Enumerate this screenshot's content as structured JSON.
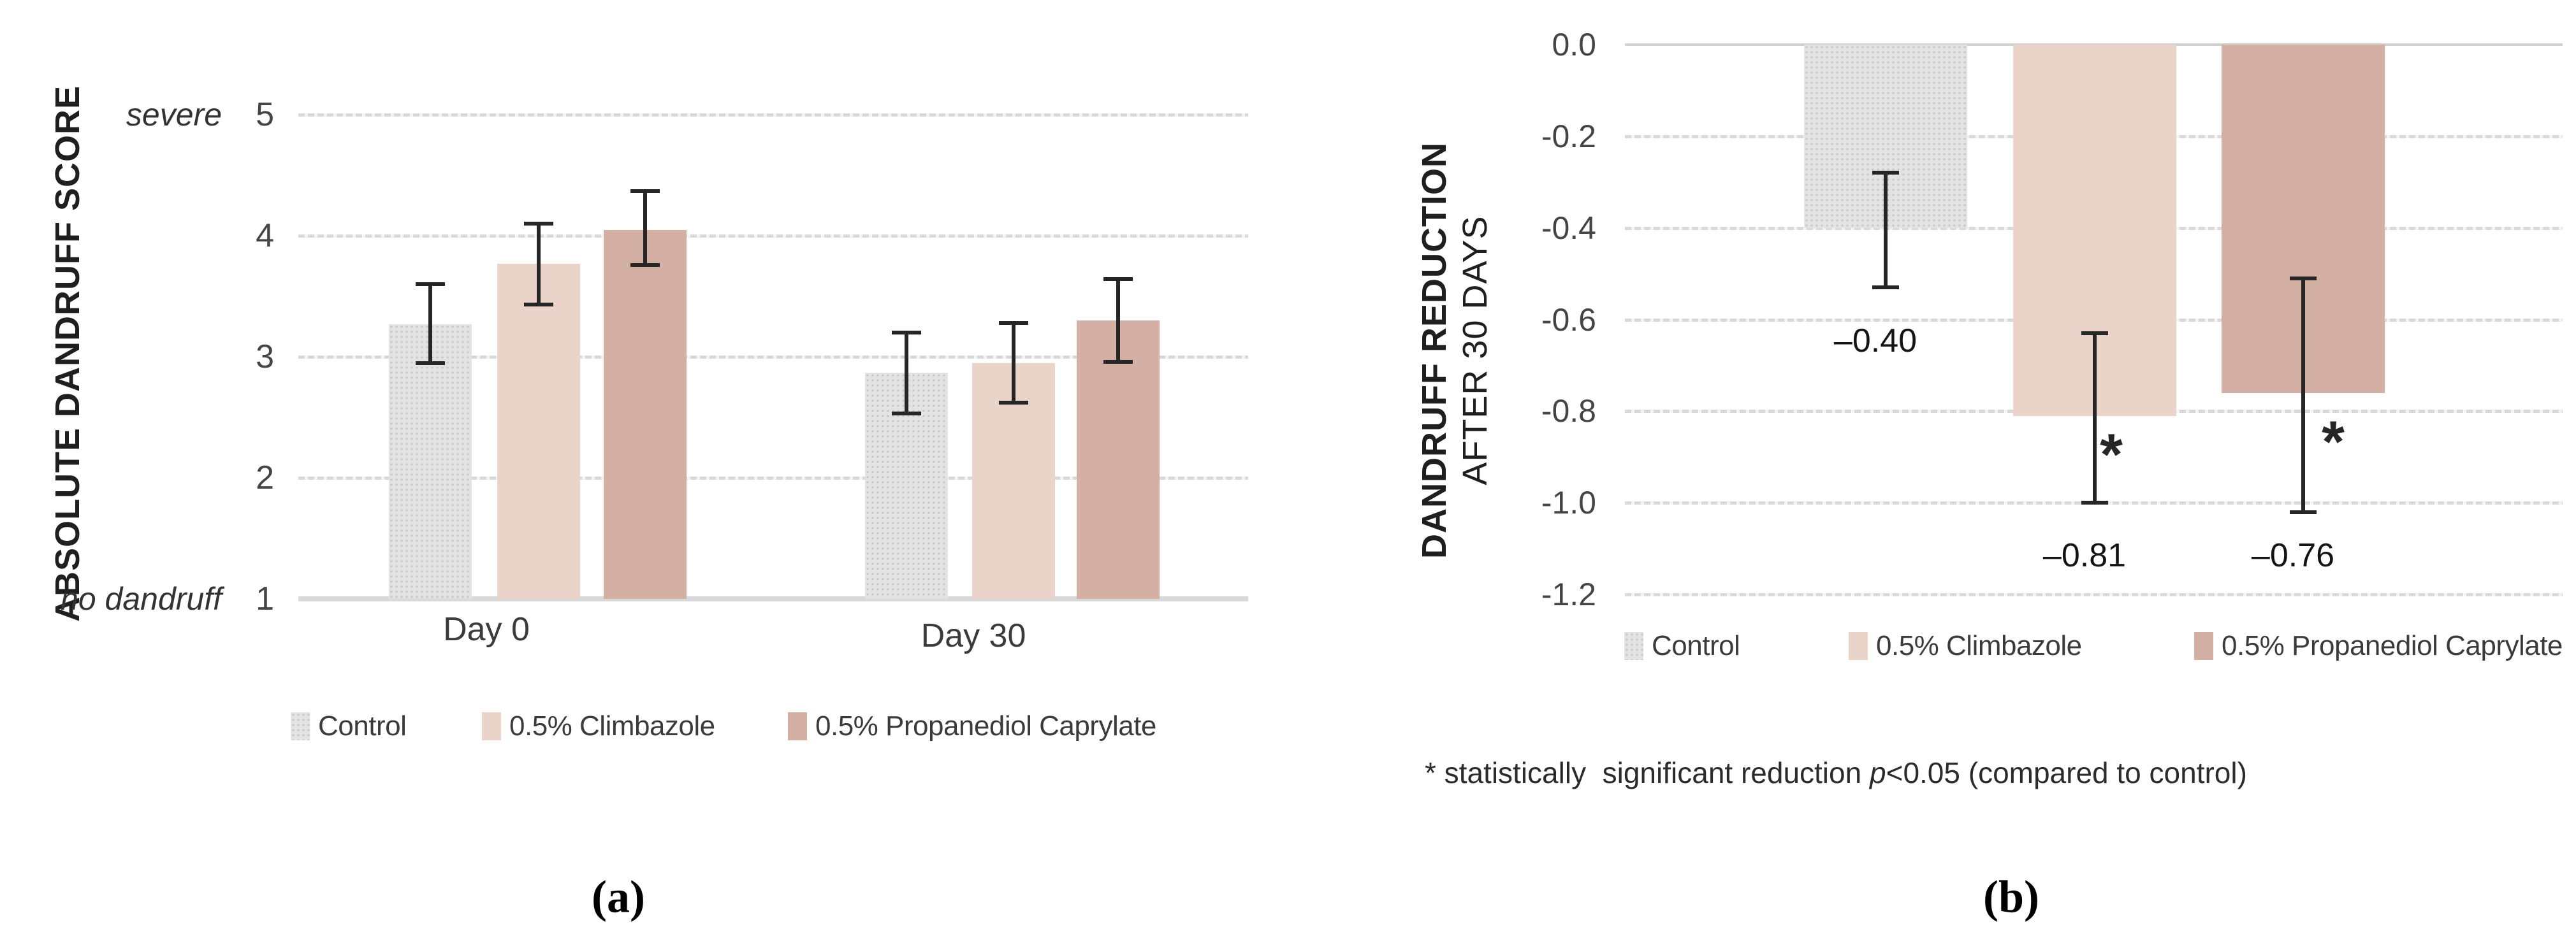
{
  "figure": {
    "panel_labels": [
      "(a)",
      "(b)"
    ],
    "background": "#ffffff",
    "colors": {
      "control": "#dcdcdc",
      "climbazole": "#ead3c9",
      "propanediol": "#d3b0a3",
      "gridline": "#d9d9d9",
      "error_bar": "#262626",
      "tick_text": "#454545",
      "label_text": "#141414"
    }
  },
  "chart_data": [
    {
      "id": "a",
      "type": "bar",
      "ylabel": "ABSOLUTE DANDRUFF SCORE",
      "ylim": [
        1,
        5
      ],
      "yticks": [
        "5",
        "4",
        "3",
        "2",
        "1"
      ],
      "ytick_values": [
        5,
        4,
        3,
        2,
        1
      ],
      "axis_annotations": {
        "top": "severe",
        "bottom": "no dandruff"
      },
      "categories": [
        "Day 0",
        "Day 30"
      ],
      "grid": true,
      "legend_position": "bottom",
      "series": [
        {
          "name": "Control",
          "color_key": "control",
          "pattern": "dots",
          "values": [
            3.27,
            2.87
          ],
          "err_lo": [
            2.95,
            2.53
          ],
          "err_hi": [
            3.6,
            3.2
          ]
        },
        {
          "name": "0.5% Climbazole",
          "color_key": "climbazole",
          "pattern": "solid",
          "values": [
            3.77,
            2.95
          ],
          "err_lo": [
            3.43,
            2.62
          ],
          "err_hi": [
            4.1,
            3.28
          ]
        },
        {
          "name": "0.5% Propanediol Caprylate",
          "color_key": "propanediol",
          "pattern": "solid",
          "values": [
            4.05,
            3.3
          ],
          "err_lo": [
            3.76,
            2.96
          ],
          "err_hi": [
            4.37,
            3.64
          ]
        }
      ]
    },
    {
      "id": "b",
      "type": "bar",
      "ylabel_line1": "DANDRUFF REDUCTION",
      "ylabel_line2": "AFTER 30 DAYS",
      "ylim": [
        -1.2,
        0.0
      ],
      "yticks": [
        "0.0",
        "-0.2",
        "-0.4",
        "-0.6",
        "-0.8",
        "-1.0",
        "-1.2"
      ],
      "ytick_values": [
        0,
        -0.2,
        -0.4,
        -0.6,
        -0.8,
        -1.0,
        -1.2
      ],
      "grid": true,
      "legend_position": "bottom",
      "significance_marker": "*",
      "bars": [
        {
          "name": "Control",
          "color_key": "control",
          "pattern": "dots",
          "value": -0.4,
          "err_hi": -0.28,
          "err_lo": -0.53,
          "data_label": "–0.40",
          "significant": false
        },
        {
          "name": "0.5% Climbazole",
          "color_key": "climbazole",
          "pattern": "solid",
          "value": -0.81,
          "err_hi": -0.63,
          "err_lo": -1.0,
          "data_label": "–0.81",
          "significant": true
        },
        {
          "name": "0.5% Propanediol Caprylate",
          "color_key": "propanediol",
          "pattern": "solid",
          "value": -0.76,
          "err_hi": -0.51,
          "err_lo": -1.02,
          "data_label": "–0.76",
          "significant": true
        }
      ],
      "footnote": {
        "prefix": "* statistically  significant reduction ",
        "italic": "p",
        "suffix": "<0.05 (compared to control)"
      }
    }
  ]
}
